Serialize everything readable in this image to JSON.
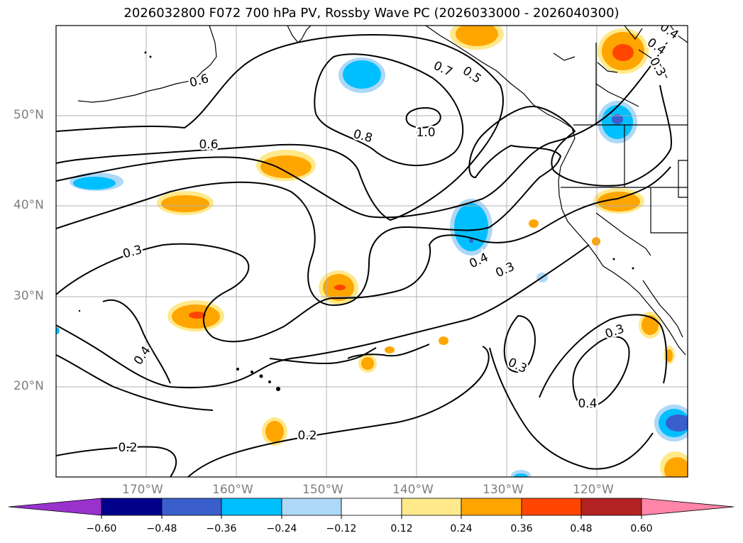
{
  "title": "2026032800 F072 700 hPa PV, Rossby Wave PC (2026033000 - 2026040300)",
  "lat_labels": [
    "50°N",
    "40°N",
    "30°N",
    "20°N"
  ],
  "lon_labels": [
    "170°W",
    "160°W",
    "150°W",
    "140°W",
    "130°W",
    "120°W"
  ],
  "contour_labels": [
    "0.6",
    "0.7",
    "0.5",
    "0.8",
    "1.0",
    "0.6",
    "0.3",
    "0.4",
    "0.4",
    "0.3",
    "0.3",
    "0.3",
    "0.4",
    "0.2",
    "0.2",
    "0.4",
    "0.3",
    "0.4"
  ],
  "colorbar": {
    "ticks": [
      "−0.60",
      "−0.48",
      "−0.36",
      "−0.24",
      "−0.12",
      "0.12",
      "0.24",
      "0.36",
      "0.48",
      "0.60"
    ],
    "colors": [
      "#9932cc",
      "#00008b",
      "#3a5fcd",
      "#00bfff",
      "#add8f6",
      "#ffffff",
      "#ffe98b",
      "#ffa500",
      "#ff4500",
      "#b22222",
      "#ff85a9"
    ]
  },
  "colors": {
    "shade_orange": "#ffa500",
    "shade_orange_red": "#ff4500",
    "shade_light_yellow": "#ffe98b",
    "shade_deep_sky": "#00bfff",
    "shade_light_blue": "#add8f6",
    "shade_royal_blue": "#3a5fcd",
    "grid": "#b0b0b0",
    "axis_label": "#7f7f7f"
  }
}
